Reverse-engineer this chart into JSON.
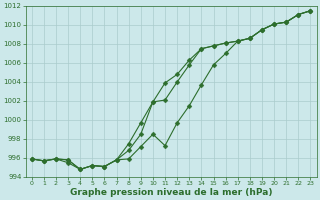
{
  "title": "Graphe pression niveau de la mer (hPa)",
  "background_color": "#cce8ea",
  "grid_color": "#aacccc",
  "line_color": "#2d6e2d",
  "x_values": [
    0,
    1,
    2,
    3,
    4,
    5,
    6,
    7,
    8,
    9,
    10,
    11,
    12,
    13,
    14,
    15,
    16,
    17,
    18,
    19,
    20,
    21,
    22,
    23
  ],
  "series1": [
    995.9,
    995.7,
    995.9,
    995.8,
    994.8,
    995.2,
    995.1,
    995.8,
    996.8,
    998.5,
    1001.9,
    1002.1,
    1004.0,
    1005.8,
    1007.5,
    1007.8,
    1008.1,
    1008.3,
    1008.6,
    1009.5,
    1010.1,
    1010.3,
    1011.1,
    1011.5
  ],
  "series2": [
    995.9,
    995.7,
    995.9,
    995.5,
    994.8,
    995.2,
    995.1,
    995.8,
    995.9,
    997.2,
    998.5,
    997.3,
    999.7,
    1001.5,
    1003.7,
    1005.8,
    1007.0,
    1008.3,
    1008.6,
    1009.5,
    1010.1,
    1010.3,
    1011.1,
    1011.5
  ],
  "series3": [
    995.9,
    995.7,
    995.9,
    995.8,
    994.8,
    995.2,
    995.1,
    995.8,
    997.5,
    999.7,
    1001.9,
    1003.9,
    1004.8,
    1006.3,
    1007.5,
    1007.8,
    1008.1,
    1008.3,
    1008.6,
    1009.5,
    1010.1,
    1010.3,
    1011.1,
    1011.5
  ],
  "ylim": [
    994,
    1012
  ],
  "xlim": [
    -0.5,
    23.5
  ],
  "yticks": [
    994,
    996,
    998,
    1000,
    1002,
    1004,
    1006,
    1008,
    1010,
    1012
  ],
  "xticks": [
    0,
    1,
    2,
    3,
    4,
    5,
    6,
    7,
    8,
    9,
    10,
    11,
    12,
    13,
    14,
    15,
    16,
    17,
    18,
    19,
    20,
    21,
    22,
    23
  ],
  "markersize": 2.5,
  "linewidth": 0.8,
  "title_fontsize": 6.5,
  "tick_fontsize": 5.0
}
